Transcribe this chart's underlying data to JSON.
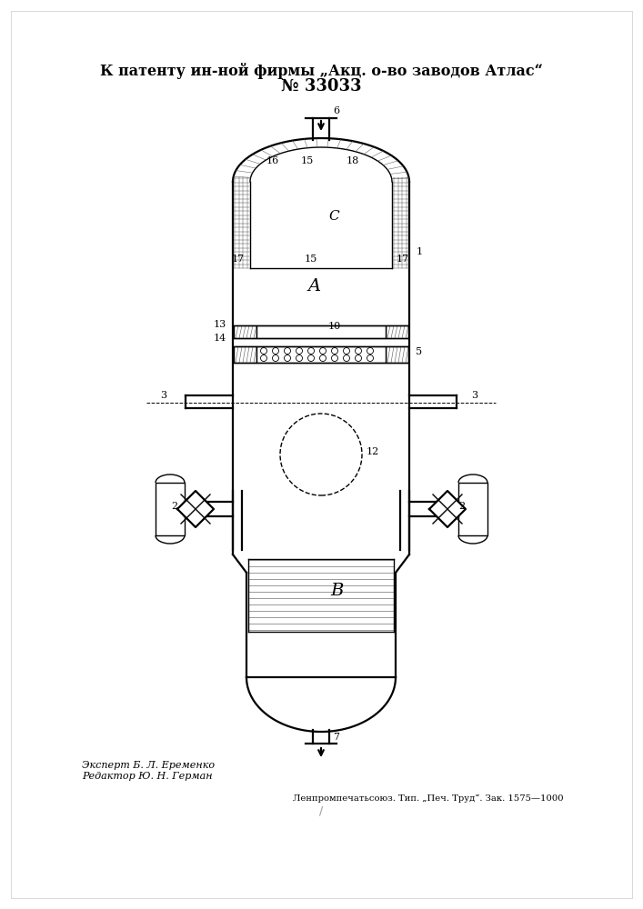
{
  "title_line1": "К патенту ин-ной фирмы „Акц. о-во заводов Атлас“",
  "title_line2": "№ 33033",
  "footer_left_line1": "Эксперт Б. Л. Еременко",
  "footer_left_line2": "Редактор Ю. Н. Герман",
  "footer_right": "Ленпромпечатьсоюз. Тип. „Печ. Труд“. Зак. 1575—1000",
  "bg_color": "#ffffff",
  "line_color": "#000000",
  "fig_width": 7.07,
  "fig_height": 10.0,
  "dpi": 100
}
